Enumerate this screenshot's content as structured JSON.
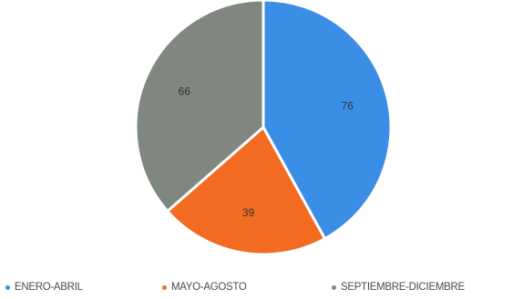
{
  "chart_data": {
    "type": "pie",
    "categories": [
      "ENERO-ABRIL",
      "MAYO-AGOSTO",
      "SEPTIEMBRE-DICIEMBRE"
    ],
    "values": [
      76,
      39,
      66
    ],
    "colors": [
      "#3a8ee6",
      "#f36a21",
      "#7f8780"
    ],
    "legend_position": "bottom",
    "start_angle_deg": 0,
    "direction": "clockwise"
  }
}
